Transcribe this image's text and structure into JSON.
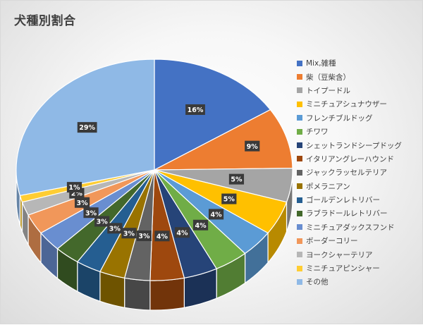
{
  "chart_data": {
    "type": "pie",
    "title": "犬種別割合",
    "style": "3d-exploded",
    "legend_position": "right",
    "categories": [
      "Mix,雑種",
      "柴（豆柴含）",
      "トイプードル",
      "ミニチュアシュナウザー",
      "フレンチブルドッグ",
      "チワワ",
      "シェットランドシープドッグ",
      "イタリアングレーハウンド",
      "ジャックラッセルテリア",
      "ポメラニアン",
      "ゴールデンレトリバー",
      "ラブラドールレトリバー",
      "ミニチュアダックスフンド",
      "ボーダーコリー",
      "ヨークシャーテリア",
      "ミニチュアピンシャー",
      "その他"
    ],
    "values": [
      16,
      9,
      5,
      5,
      4,
      4,
      4,
      4,
      3,
      3,
      3,
      3,
      3,
      3,
      2,
      1,
      29
    ],
    "data_labels": [
      "16%",
      "9%",
      "5%",
      "5%",
      "4%",
      "4%",
      "4%",
      "4%",
      "3%",
      "3%",
      "3%",
      "3%",
      "3%",
      "3%",
      "2%",
      "1%",
      "29%"
    ],
    "colors": [
      "#4472C4",
      "#ED7D31",
      "#A5A5A5",
      "#FFC000",
      "#5B9BD5",
      "#70AD47",
      "#264478",
      "#9E480E",
      "#636363",
      "#997300",
      "#255E91",
      "#43682B",
      "#698ED0",
      "#F1975A",
      "#B7B7B7",
      "#FFCD33",
      "#8FB9E6"
    ]
  }
}
